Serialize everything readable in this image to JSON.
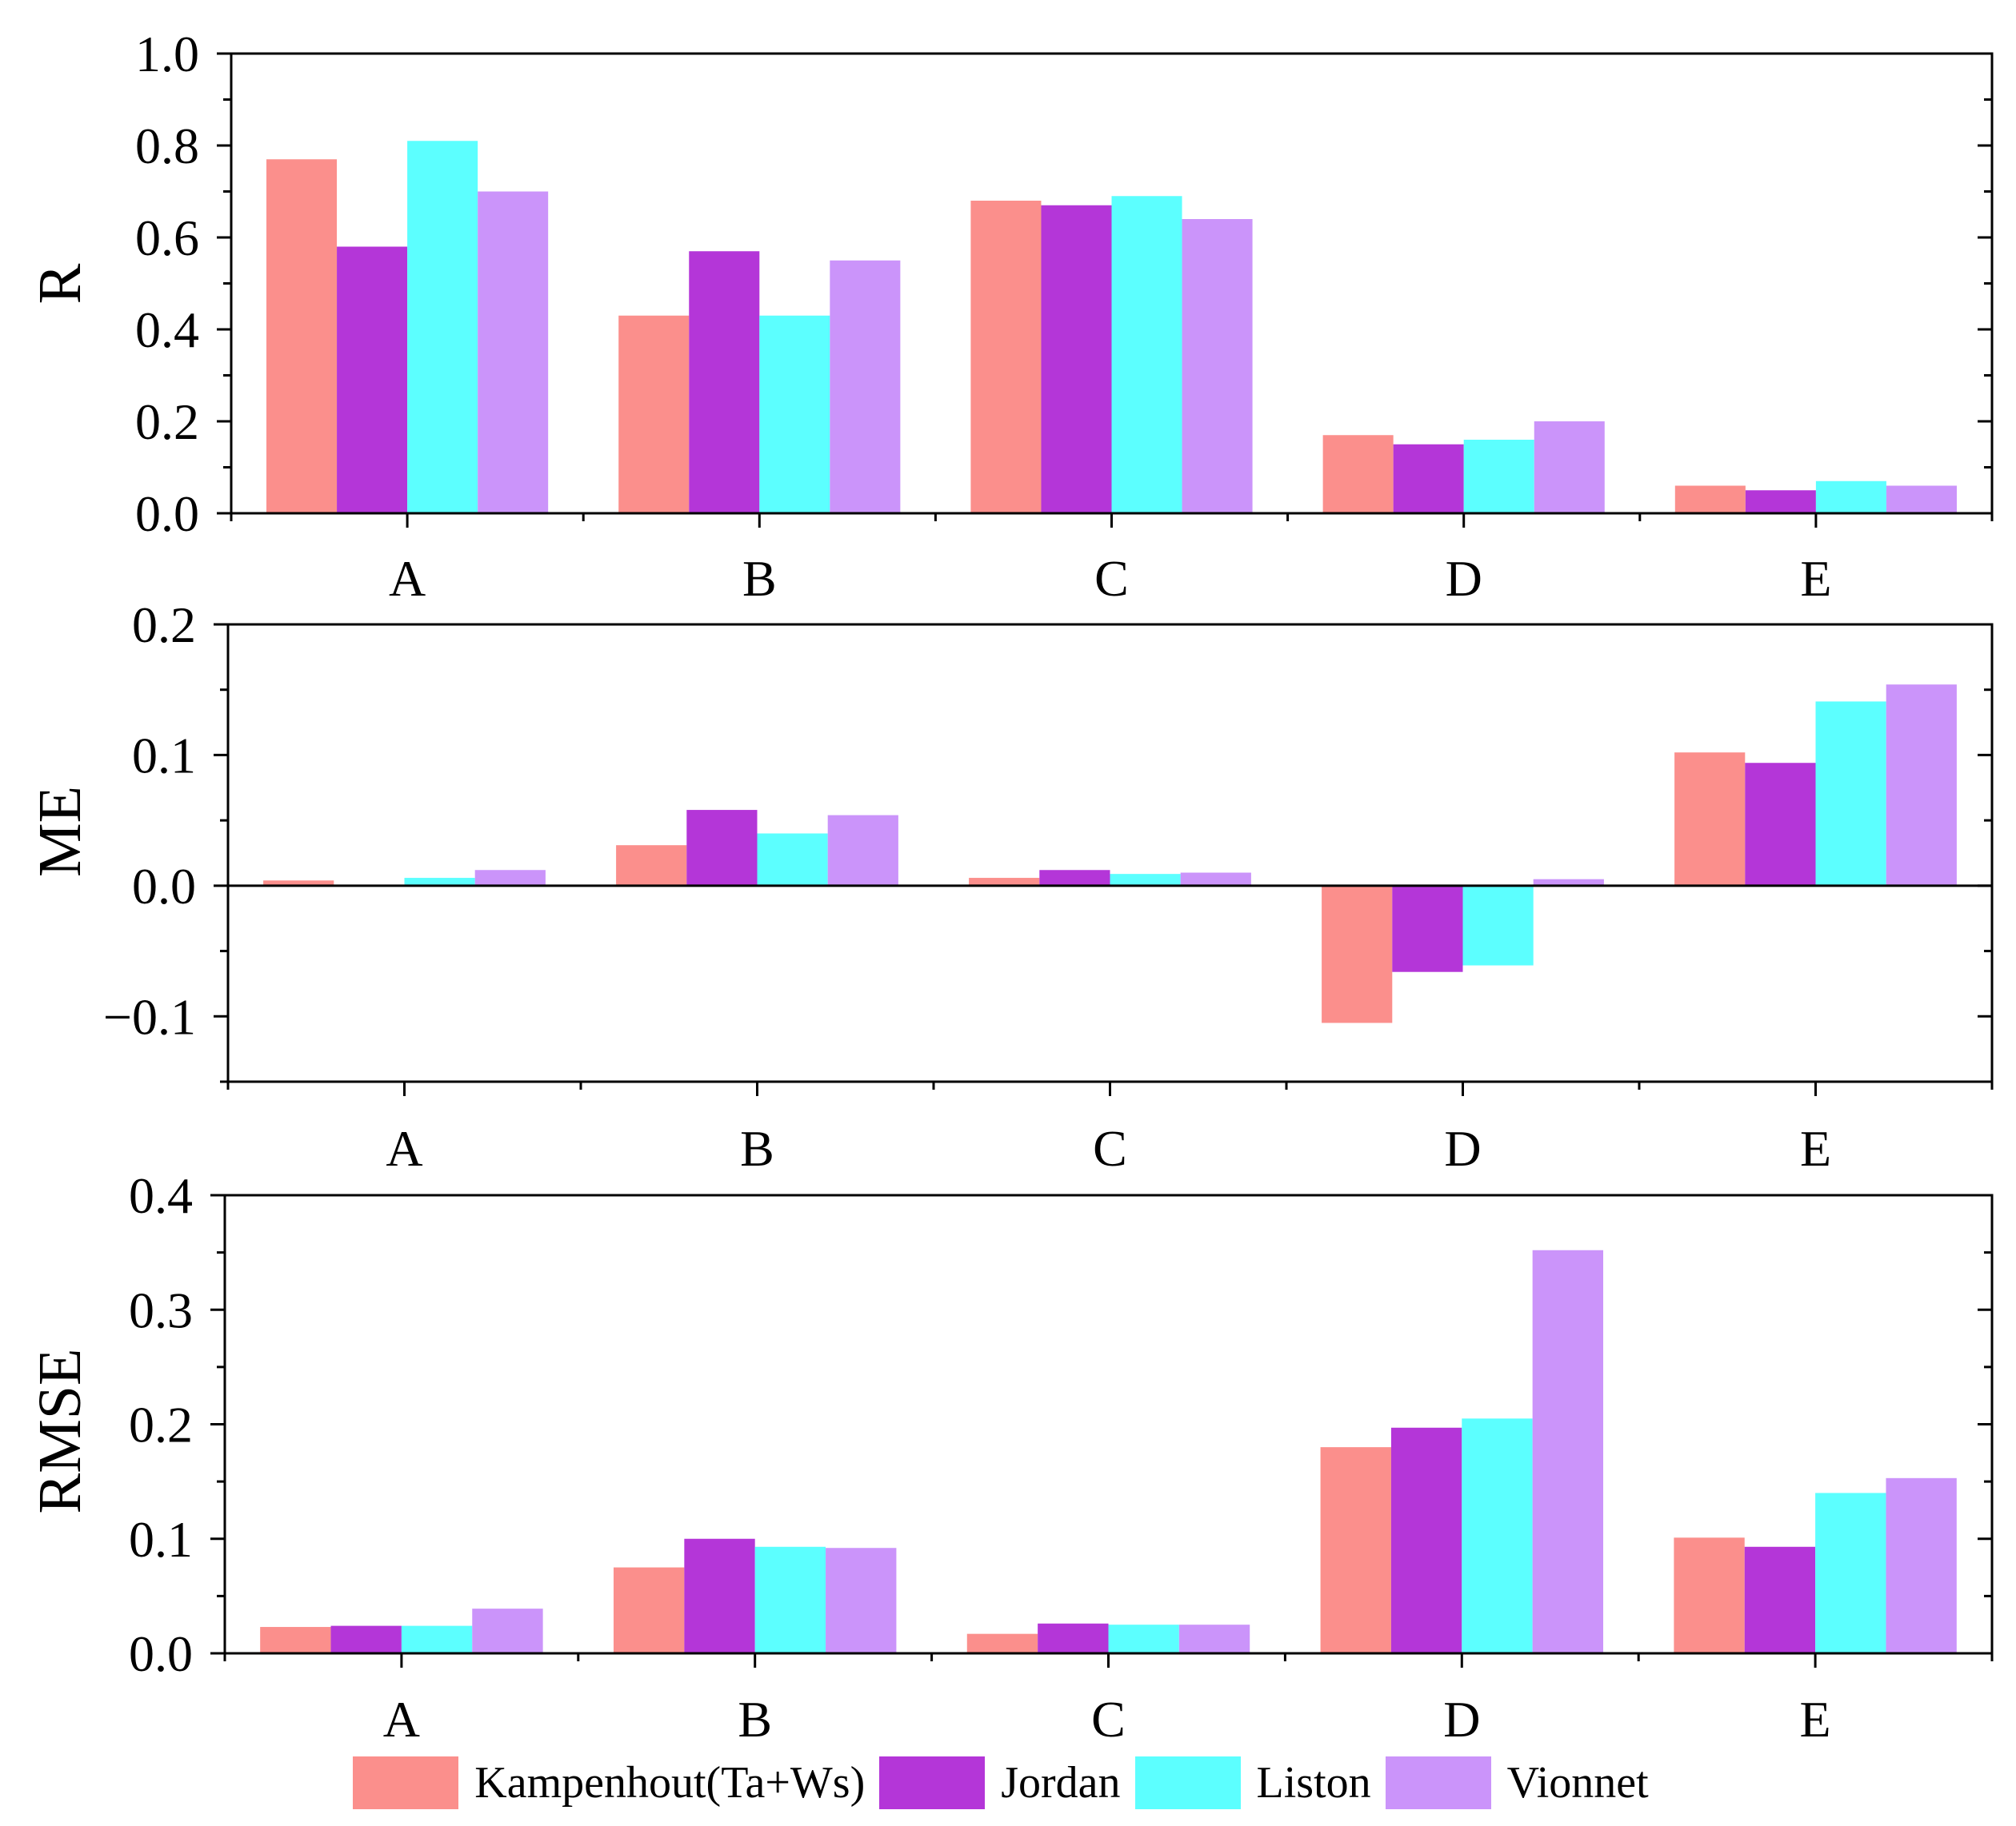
{
  "colors": {
    "Kampenhout(Ta+Ws)": "#fb8f8c",
    "Jordan": "#b436d8",
    "Liston": "#5cffff",
    "Vionnet": "#cb94fa"
  },
  "legend": [
    {
      "name": "Kampenhout(Ta+Ws)"
    },
    {
      "name": "Jordan"
    },
    {
      "name": "Liston"
    },
    {
      "name": "Vionnet"
    }
  ],
  "chart_data": [
    {
      "type": "bar",
      "title": "",
      "xlabel": "",
      "ylabel": "R",
      "categories": [
        "A",
        "B",
        "C",
        "D",
        "E"
      ],
      "ylim": [
        0.0,
        1.0
      ],
      "yticks": [
        0.0,
        0.2,
        0.4,
        0.6,
        0.8,
        1.0
      ],
      "ytick_labels": [
        "0.0",
        "0.2",
        "0.4",
        "0.6",
        "0.8",
        "1.0"
      ],
      "series": [
        {
          "name": "Kampenhout(Ta+Ws)",
          "values": [
            0.77,
            0.43,
            0.68,
            0.17,
            0.06
          ]
        },
        {
          "name": "Jordan",
          "values": [
            0.58,
            0.57,
            0.67,
            0.15,
            0.05
          ]
        },
        {
          "name": "Liston",
          "values": [
            0.81,
            0.43,
            0.69,
            0.16,
            0.07
          ]
        },
        {
          "name": "Vionnet",
          "values": [
            0.7,
            0.55,
            0.64,
            0.2,
            0.06
          ]
        }
      ]
    },
    {
      "type": "bar",
      "title": "",
      "xlabel": "",
      "ylabel": "ME",
      "categories": [
        "A",
        "B",
        "C",
        "D",
        "E"
      ],
      "ylim": [
        -0.15,
        0.2
      ],
      "yticks": [
        -0.1,
        0.0,
        0.1,
        0.2
      ],
      "ytick_labels": [
        "−0.1",
        "0.0",
        "0.1",
        "0.2"
      ],
      "zero_line": true,
      "series": [
        {
          "name": "Kampenhout(Ta+Ws)",
          "values": [
            0.004,
            0.031,
            0.006,
            -0.105,
            0.102
          ]
        },
        {
          "name": "Jordan",
          "values": [
            0.0,
            0.058,
            0.012,
            -0.066,
            0.094
          ]
        },
        {
          "name": "Liston",
          "values": [
            0.006,
            0.04,
            0.009,
            -0.061,
            0.141
          ]
        },
        {
          "name": "Vionnet",
          "values": [
            0.012,
            0.054,
            0.01,
            0.005,
            0.154
          ]
        }
      ]
    },
    {
      "type": "bar",
      "title": "",
      "xlabel": "",
      "ylabel": "RMSE",
      "categories": [
        "A",
        "B",
        "C",
        "D",
        "E"
      ],
      "ylim": [
        0.0,
        0.4
      ],
      "yticks": [
        0.0,
        0.1,
        0.2,
        0.3,
        0.4
      ],
      "ytick_labels": [
        "0.0",
        "0.1",
        "0.2",
        "0.3",
        "0.4"
      ],
      "series": [
        {
          "name": "Kampenhout(Ta+Ws)",
          "values": [
            0.023,
            0.075,
            0.017,
            0.18,
            0.101
          ]
        },
        {
          "name": "Jordan",
          "values": [
            0.024,
            0.1,
            0.026,
            0.197,
            0.093
          ]
        },
        {
          "name": "Liston",
          "values": [
            0.024,
            0.093,
            0.025,
            0.205,
            0.14
          ]
        },
        {
          "name": "Vionnet",
          "values": [
            0.039,
            0.092,
            0.025,
            0.352,
            0.153
          ]
        }
      ]
    }
  ]
}
